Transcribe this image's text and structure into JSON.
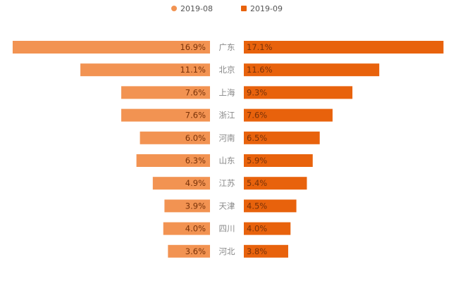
{
  "chart_data": {
    "type": "bar",
    "orientation": "horizontal-butterfly",
    "categories": [
      "广东",
      "北京",
      "上海",
      "浙江",
      "河南",
      "山东",
      "江苏",
      "天津",
      "四川",
      "河北"
    ],
    "series": [
      {
        "name": "2019-08",
        "color": "#F29352",
        "values": [
          16.9,
          11.1,
          7.6,
          7.6,
          6.0,
          6.3,
          4.9,
          3.9,
          4.0,
          3.6
        ],
        "labels": [
          "16.9%",
          "11.1%",
          "7.6%",
          "7.6%",
          "6.0%",
          "6.3%",
          "4.9%",
          "3.9%",
          "4.0%",
          "3.6%"
        ],
        "side": "left"
      },
      {
        "name": "2019-09",
        "color": "#E8620C",
        "values": [
          17.1,
          11.6,
          9.3,
          7.6,
          6.5,
          5.9,
          5.4,
          4.5,
          4.0,
          3.8
        ],
        "labels": [
          "17.1%",
          "11.6%",
          "9.3%",
          "7.6%",
          "6.5%",
          "5.9%",
          "5.4%",
          "4.5%",
          "4.0%",
          "3.8%"
        ],
        "side": "right"
      }
    ],
    "unit": "%",
    "legend_position": "top-center",
    "grid": false
  }
}
